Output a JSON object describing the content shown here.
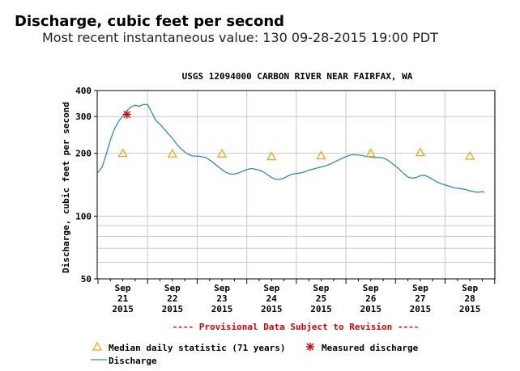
{
  "header": {
    "title": "Discharge, cubic feet per second",
    "subtitle": "Most recent instantaneous value: 130   09-28-2015  19:00 PDT"
  },
  "chart_data": {
    "type": "line",
    "title": "USGS 12094000 CARBON RIVER NEAR FAIRFAX, WA",
    "ylabel": "Discharge, cubic feet per second",
    "xlabel": "",
    "yscale": "log",
    "ylim": [
      50,
      400
    ],
    "xlim": [
      "2015-09-21T00:00",
      "2015-09-28T19:00"
    ],
    "grid": true,
    "y_ticks": [
      "50",
      "100",
      "200",
      "300",
      "400"
    ],
    "x_ticks": [
      {
        "month": "Sep",
        "day": "21",
        "year": "2015",
        "x": "2015-09-21T12:00"
      },
      {
        "month": "Sep",
        "day": "22",
        "year": "2015",
        "x": "2015-09-22T12:00"
      },
      {
        "month": "Sep",
        "day": "23",
        "year": "2015",
        "x": "2015-09-23T12:00"
      },
      {
        "month": "Sep",
        "day": "24",
        "year": "2015",
        "x": "2015-09-24T12:00"
      },
      {
        "month": "Sep",
        "day": "25",
        "year": "2015",
        "x": "2015-09-25T12:00"
      },
      {
        "month": "Sep",
        "day": "26",
        "year": "2015",
        "x": "2015-09-26T12:00"
      },
      {
        "month": "Sep",
        "day": "27",
        "year": "2015",
        "x": "2015-09-27T12:00"
      },
      {
        "month": "Sep",
        "day": "28",
        "year": "2015",
        "x": "2015-09-28T12:00"
      }
    ],
    "provisional_note": "---- Provisional Data Subject to Revision ----",
    "series": [
      {
        "name": "Discharge",
        "color": "#2a8fb8",
        "points": [
          [
            "2015-09-21T00:00",
            162
          ],
          [
            "2015-09-21T02:00",
            172
          ],
          [
            "2015-09-21T04:00",
            198
          ],
          [
            "2015-09-21T06:00",
            232
          ],
          [
            "2015-09-21T08:00",
            262
          ],
          [
            "2015-09-21T10:00",
            285
          ],
          [
            "2015-09-21T12:00",
            302
          ],
          [
            "2015-09-21T14:00",
            320
          ],
          [
            "2015-09-21T16:00",
            334
          ],
          [
            "2015-09-21T18:00",
            340
          ],
          [
            "2015-09-21T20:00",
            336
          ],
          [
            "2015-09-21T22:00",
            343
          ],
          [
            "2015-09-22T00:00",
            342
          ],
          [
            "2015-09-22T02:00",
            315
          ],
          [
            "2015-09-22T04:00",
            287
          ],
          [
            "2015-09-22T06:00",
            276
          ],
          [
            "2015-09-22T08:00",
            262
          ],
          [
            "2015-09-22T10:00",
            248
          ],
          [
            "2015-09-22T12:00",
            236
          ],
          [
            "2015-09-22T14:00",
            222
          ],
          [
            "2015-09-22T16:00",
            211
          ],
          [
            "2015-09-22T18:00",
            203
          ],
          [
            "2015-09-22T20:00",
            197
          ],
          [
            "2015-09-22T22:00",
            194
          ],
          [
            "2015-09-23T00:00",
            194
          ],
          [
            "2015-09-23T02:00",
            193
          ],
          [
            "2015-09-23T04:00",
            191
          ],
          [
            "2015-09-23T06:00",
            186
          ],
          [
            "2015-09-23T08:00",
            180
          ],
          [
            "2015-09-23T10:00",
            173
          ],
          [
            "2015-09-23T12:00",
            167
          ],
          [
            "2015-09-23T14:00",
            162
          ],
          [
            "2015-09-23T16:00",
            159
          ],
          [
            "2015-09-23T18:00",
            159
          ],
          [
            "2015-09-23T20:00",
            161
          ],
          [
            "2015-09-23T22:00",
            164
          ],
          [
            "2015-09-24T00:00",
            167
          ],
          [
            "2015-09-24T02:00",
            169
          ],
          [
            "2015-09-24T04:00",
            168
          ],
          [
            "2015-09-24T06:00",
            166
          ],
          [
            "2015-09-24T08:00",
            163
          ],
          [
            "2015-09-24T10:00",
            158
          ],
          [
            "2015-09-24T12:00",
            153
          ],
          [
            "2015-09-24T14:00",
            150
          ],
          [
            "2015-09-24T16:00",
            150
          ],
          [
            "2015-09-24T18:00",
            152
          ],
          [
            "2015-09-24T20:00",
            156
          ],
          [
            "2015-09-24T22:00",
            159
          ],
          [
            "2015-09-25T00:00",
            160
          ],
          [
            "2015-09-25T02:00",
            161
          ],
          [
            "2015-09-25T04:00",
            163
          ],
          [
            "2015-09-25T06:00",
            166
          ],
          [
            "2015-09-25T08:00",
            168
          ],
          [
            "2015-09-25T10:00",
            170
          ],
          [
            "2015-09-25T12:00",
            172
          ],
          [
            "2015-09-25T14:00",
            174
          ],
          [
            "2015-09-25T16:00",
            177
          ],
          [
            "2015-09-25T18:00",
            181
          ],
          [
            "2015-09-25T20:00",
            185
          ],
          [
            "2015-09-25T22:00",
            189
          ],
          [
            "2015-09-26T00:00",
            193
          ],
          [
            "2015-09-26T02:00",
            196
          ],
          [
            "2015-09-26T04:00",
            197
          ],
          [
            "2015-09-26T06:00",
            196
          ],
          [
            "2015-09-26T08:00",
            195
          ],
          [
            "2015-09-26T10:00",
            193
          ],
          [
            "2015-09-26T12:00",
            192
          ],
          [
            "2015-09-26T14:00",
            191
          ],
          [
            "2015-09-26T16:00",
            191
          ],
          [
            "2015-09-26T18:00",
            190
          ],
          [
            "2015-09-26T20:00",
            186
          ],
          [
            "2015-09-26T22:00",
            180
          ],
          [
            "2015-09-27T00:00",
            174
          ],
          [
            "2015-09-27T02:00",
            167
          ],
          [
            "2015-09-27T04:00",
            160
          ],
          [
            "2015-09-27T06:00",
            154
          ],
          [
            "2015-09-27T08:00",
            152
          ],
          [
            "2015-09-27T10:00",
            153
          ],
          [
            "2015-09-27T12:00",
            156
          ],
          [
            "2015-09-27T14:00",
            157
          ],
          [
            "2015-09-27T16:00",
            154
          ],
          [
            "2015-09-27T18:00",
            150
          ],
          [
            "2015-09-27T20:00",
            146
          ],
          [
            "2015-09-27T22:00",
            143
          ],
          [
            "2015-09-28T00:00",
            141
          ],
          [
            "2015-09-28T02:00",
            139
          ],
          [
            "2015-09-28T04:00",
            137
          ],
          [
            "2015-09-28T06:00",
            136
          ],
          [
            "2015-09-28T08:00",
            135
          ],
          [
            "2015-09-28T10:00",
            134
          ],
          [
            "2015-09-28T12:00",
            132
          ],
          [
            "2015-09-28T14:00",
            131
          ],
          [
            "2015-09-28T16:00",
            130
          ],
          [
            "2015-09-28T18:00",
            131
          ],
          [
            "2015-09-28T19:00",
            130
          ]
        ]
      },
      {
        "name": "Median daily statistic (71 years)",
        "marker": "triangle",
        "color": "#f0a000",
        "points": [
          [
            "2015-09-21T12:00",
            200
          ],
          [
            "2015-09-22T12:00",
            199
          ],
          [
            "2015-09-23T12:00",
            199
          ],
          [
            "2015-09-24T12:00",
            193
          ],
          [
            "2015-09-25T12:00",
            195
          ],
          [
            "2015-09-26T12:00",
            200
          ],
          [
            "2015-09-27T12:00",
            202
          ],
          [
            "2015-09-28T12:00",
            194
          ]
        ]
      },
      {
        "name": "Measured discharge",
        "marker": "asterisk",
        "color": "#dd0000",
        "points": [
          [
            "2015-09-21T14:00",
            307
          ]
        ]
      }
    ]
  },
  "legend": [
    {
      "label": "Median daily statistic (71 years)",
      "icon": "triangle-icon"
    },
    {
      "label": "Measured discharge",
      "icon": "asterisk-icon"
    },
    {
      "label": "Discharge",
      "icon": "line-icon"
    }
  ],
  "colors": {
    "grid": "#c8c8c8",
    "note": "#dd0000"
  }
}
